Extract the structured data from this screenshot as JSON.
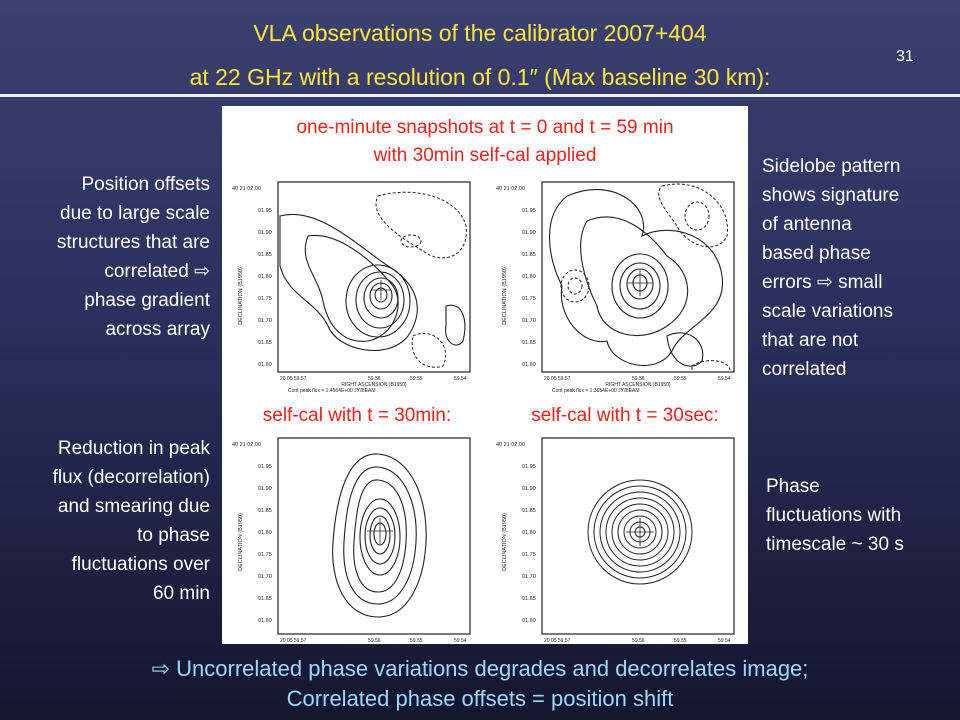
{
  "header": {
    "title_line1": "VLA observations of the calibrator 2007+404",
    "title_line2": "at 22 GHz with a resolution of 0.1″ (Max baseline 30 km):",
    "slide_number": "31"
  },
  "left": {
    "position_offsets": [
      "Position offsets",
      "due to large scale",
      "structures that are",
      "correlated ⇨",
      "phase gradient",
      "across array"
    ],
    "reduction": [
      "Reduction in peak",
      "flux (decorrelation)",
      "and smearing due",
      "to phase",
      "fluctuations over",
      "60 min"
    ]
  },
  "right": {
    "sidelobe": [
      "Sidelobe pattern",
      "shows signature",
      "of antenna",
      "based phase",
      "errors ⇨ small",
      "scale variations",
      "that are not",
      "correlated"
    ],
    "phase_fluct": [
      "Phase",
      "fluctuations with",
      "timescale ~ 30 s"
    ]
  },
  "figure": {
    "caption_top_line1": "one-minute snapshots at t = 0 and t = 59 min",
    "caption_top_line2": "with 30min self-cal applied",
    "caption_left": "self-cal with t = 30min:",
    "caption_right": "self-cal with t = 30sec:",
    "axis": {
      "dec_label": "DECLINATION (B1950)",
      "ra_label": "RIGHT ASCENSION (B1950)",
      "y_ticks": [
        "40 21 02.00",
        "01.95",
        "01.90",
        "01.85",
        "01.80",
        "01.75",
        "01.70",
        "01.65",
        "01.60"
      ],
      "x_ticks": [
        "20 05 59.57",
        "59.56",
        "59.55",
        "59.54"
      ]
    },
    "peak_flux_left": "Cont peak flux = 1.4564E+00 JY/BEAM",
    "peak_flux_right": "Cont peak flux = 1.3654E+00 JY/BEAM"
  },
  "bottom": {
    "line1": "⇨ Uncorrelated phase variations degrades and decorrelates image;",
    "line2": "Correlated phase offsets = position shift"
  },
  "colors": {
    "title": "#ffe63a",
    "caption": "#e8231e",
    "bottom_text": "#9dd8ff",
    "body_text": "#ffffff"
  }
}
